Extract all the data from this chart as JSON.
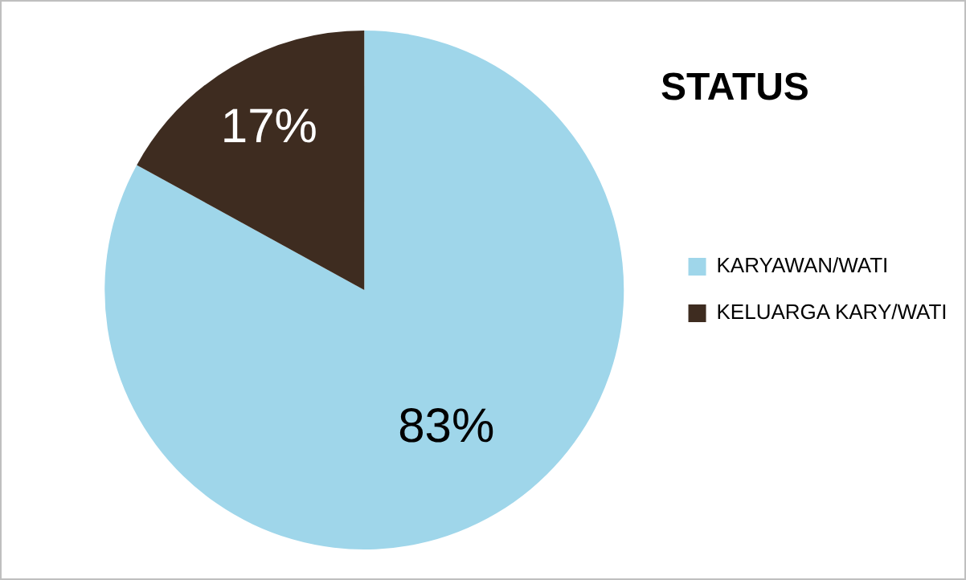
{
  "chart_data": {
    "type": "pie",
    "title": "STATUS",
    "categories": [
      "KARYAWAN/WATI",
      "KELUARGA KARY/WATI"
    ],
    "values": [
      83,
      17
    ],
    "colors": [
      "#9fd6ea",
      "#3e2c20"
    ],
    "value_labels": [
      "83%",
      "17%"
    ],
    "legend": "right"
  }
}
